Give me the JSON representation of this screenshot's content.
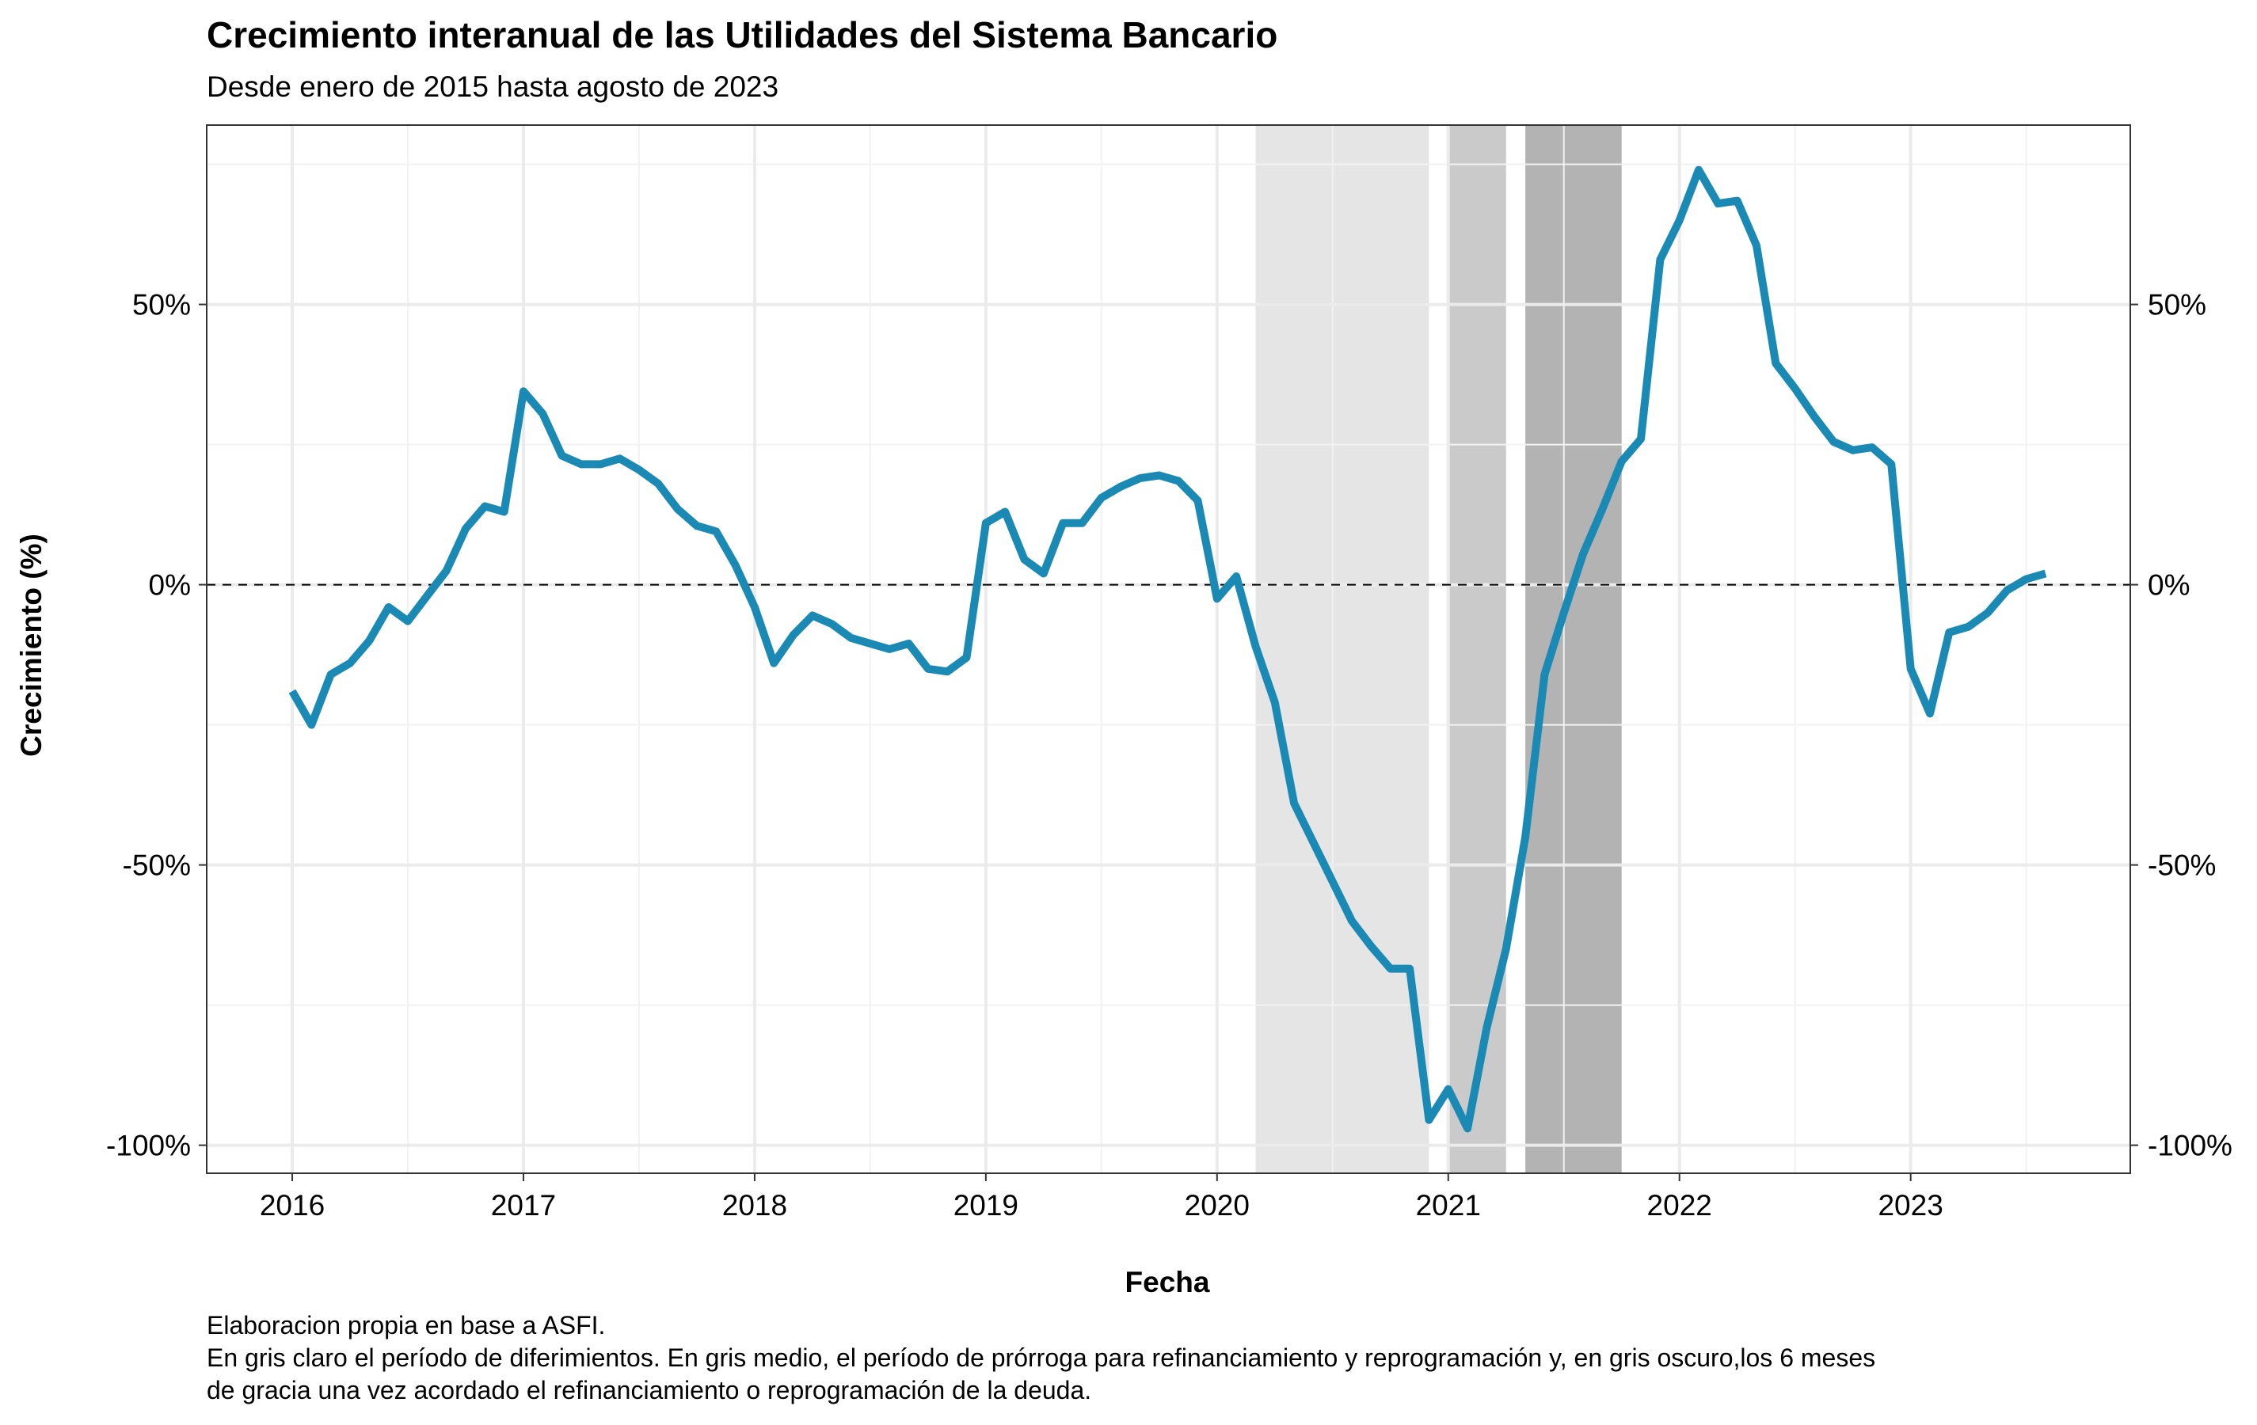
{
  "chart_data": {
    "type": "line",
    "title": "Crecimiento interanual de las Utilidades del Sistema Bancario",
    "subtitle": "Desde enero de 2015 hasta agosto de 2023",
    "xlabel": "Fecha",
    "ylabel": "Crecimiento (%)",
    "caption_lines": [
      "Elaboracion propia en base a ASFI.",
      "En gris claro el período de diferimientos. En gris medio, el período de prórroga para refinanciamiento y reprogramación y, en gris oscuro,los 6 meses",
      "de gracia una vez acordado el refinanciamiento o reprogramación de la deuda."
    ],
    "xlim": [
      2015.63,
      2023.95
    ],
    "ylim": [
      -105,
      82
    ],
    "x_ticks": [
      2016,
      2017,
      2018,
      2019,
      2020,
      2021,
      2022,
      2023
    ],
    "x_tick_labels": [
      "2016",
      "2017",
      "2018",
      "2019",
      "2020",
      "2021",
      "2022",
      "2023"
    ],
    "y_ticks": [
      -100,
      -50,
      0,
      50
    ],
    "y_tick_labels": [
      "-100%",
      "-50%",
      "0%",
      "50%"
    ],
    "grid": true,
    "secondary_y_axis": true,
    "reference_line": {
      "y": 0,
      "style": "dashed",
      "color": "#000000"
    },
    "line_color": "#1a8ab5",
    "shaded_periods": [
      {
        "from": "2020-03",
        "to": "2020-12",
        "color": "#e5e5e5"
      },
      {
        "from": "2021-01",
        "to": "2021-04",
        "color": "#cacaca"
      },
      {
        "from": "2021-05",
        "to": "2021-10",
        "color": "#b3b3b3"
      }
    ],
    "series": [
      {
        "x": [
          "2016-01",
          "2016-02",
          "2016-03",
          "2016-04",
          "2016-05",
          "2016-06",
          "2016-07",
          "2016-08",
          "2016-09",
          "2016-10",
          "2016-11",
          "2016-12",
          "2017-01",
          "2017-02",
          "2017-03",
          "2017-04",
          "2017-05",
          "2017-06",
          "2017-07",
          "2017-08",
          "2017-09",
          "2017-10",
          "2017-11",
          "2017-12",
          "2018-01",
          "2018-02",
          "2018-03",
          "2018-04",
          "2018-05",
          "2018-06",
          "2018-07",
          "2018-08",
          "2018-09",
          "2018-10",
          "2018-11",
          "2018-12",
          "2019-01",
          "2019-02",
          "2019-03",
          "2019-04",
          "2019-05",
          "2019-06",
          "2019-07",
          "2019-08",
          "2019-09",
          "2019-10",
          "2019-11",
          "2019-12",
          "2020-01",
          "2020-02",
          "2020-03",
          "2020-04",
          "2020-05",
          "2020-06",
          "2020-07",
          "2020-08",
          "2020-09",
          "2020-10",
          "2020-11",
          "2020-12",
          "2021-01",
          "2021-02",
          "2021-03",
          "2021-04",
          "2021-05",
          "2021-06",
          "2021-07",
          "2021-08",
          "2021-09",
          "2021-10",
          "2021-11",
          "2021-12",
          "2022-01",
          "2022-02",
          "2022-03",
          "2022-04",
          "2022-05",
          "2022-06",
          "2022-07",
          "2022-08",
          "2022-09",
          "2022-10",
          "2022-11",
          "2022-12",
          "2023-01",
          "2023-02",
          "2023-03",
          "2023-04",
          "2023-05",
          "2023-06",
          "2023-07",
          "2023-08"
        ],
        "values": [
          -19,
          -25,
          -16,
          -14,
          -10,
          -4,
          -6.5,
          -2,
          2.5,
          10,
          14,
          13,
          34.5,
          30.5,
          23,
          21.5,
          21.5,
          22.5,
          20.5,
          18,
          13.5,
          10.5,
          9.5,
          3.5,
          -4,
          -14,
          -9,
          -5.5,
          -7,
          -9.5,
          -10.5,
          -11.5,
          -10.5,
          -15,
          -15.5,
          -13,
          11,
          13,
          4.5,
          2,
          11,
          11,
          15.5,
          17.5,
          19,
          19.5,
          18.5,
          15,
          -2.5,
          1.5,
          -11,
          -21,
          -39,
          -46,
          -53,
          -60,
          -64.5,
          -68.5,
          -68.5,
          -95.5,
          -90,
          -97,
          -79,
          -65,
          -45,
          -16,
          -5,
          5.5,
          13.5,
          22,
          26,
          58,
          65,
          74,
          68,
          68.5,
          60.5,
          39.5,
          35,
          30,
          25.5,
          24,
          24.5,
          21.5,
          -15,
          -23,
          -8.5,
          -7.5,
          -5,
          -1,
          1,
          2
        ]
      }
    ]
  }
}
